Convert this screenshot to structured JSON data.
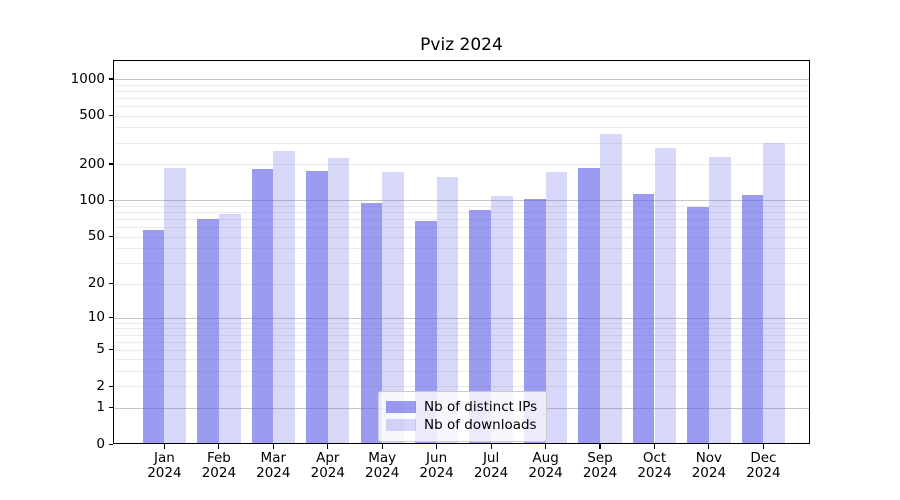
{
  "title": "Pviz 2024",
  "chart_data": {
    "type": "bar",
    "title": "Pviz 2024",
    "categories": [
      "Jan",
      "Feb",
      "Mar",
      "Apr",
      "May",
      "Jun",
      "Jul",
      "Aug",
      "Sep",
      "Oct",
      "Nov",
      "Dec"
    ],
    "year": "2024",
    "series": [
      {
        "name": "Nb of distinct IPs",
        "color": "rgba(94,94,231,0.62)",
        "values": [
          57,
          70,
          181,
          175,
          96,
          67,
          84,
          103,
          187,
          113,
          89,
          111
        ]
      },
      {
        "name": "Nb of downloads",
        "color": "rgba(94,94,231,0.25)",
        "values": [
          184,
          77,
          256,
          223,
          172,
          155,
          108,
          171,
          355,
          269,
          227,
          299
        ]
      }
    ],
    "yscale": "log1p",
    "yticks": [
      0,
      1,
      2,
      5,
      10,
      20,
      50,
      100,
      200,
      500,
      1000
    ],
    "ylim": [
      0,
      1435
    ],
    "xlabel": "",
    "ylabel": "",
    "grid": "both",
    "legend_position": "lower center"
  },
  "colors": {
    "bar_base": "#5e5ee7",
    "grid_major": "#c6c6c6",
    "grid_minor": "#ebebeb",
    "axis": "#000000",
    "legend_border": "#cccccc",
    "background": "#ffffff"
  }
}
